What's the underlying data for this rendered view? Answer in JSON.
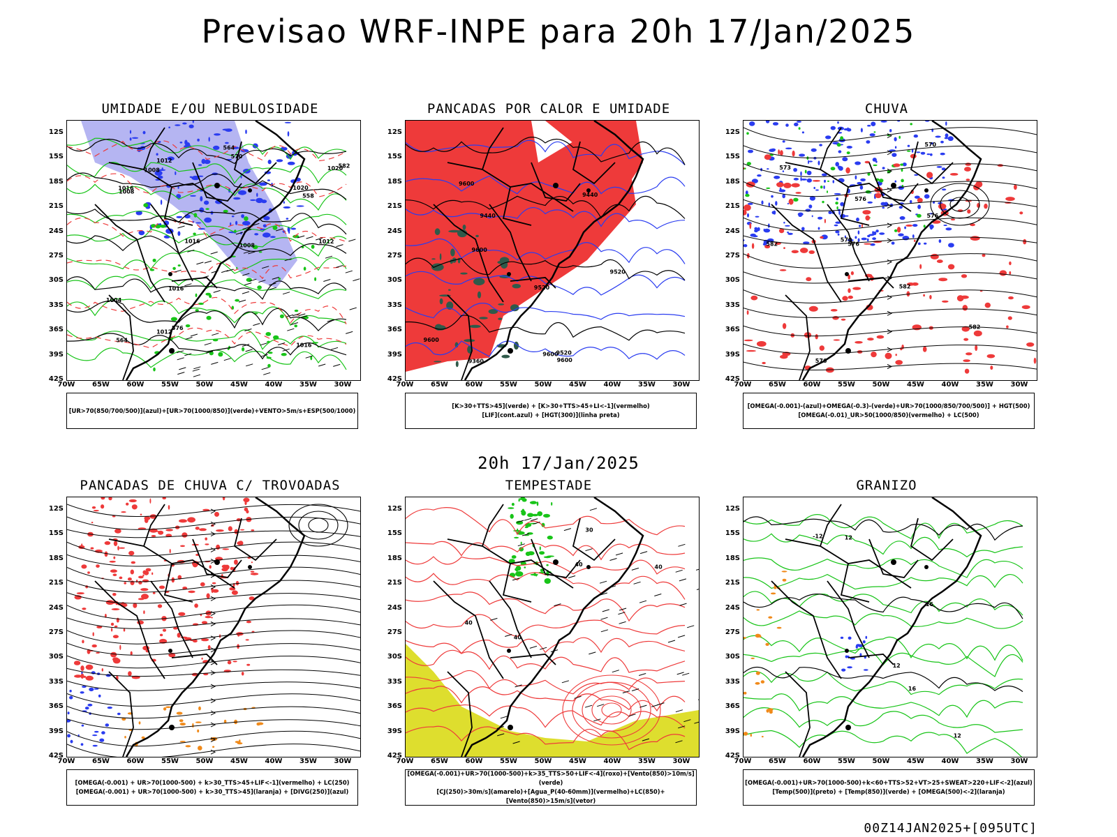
{
  "header": {
    "title": "Previsao WRF-INPE  para 20h 17/Jan/2025",
    "mid_time": "20h 17/Jan/2025",
    "footer": "00Z14JAN2025+[095UTC]"
  },
  "axes": {
    "lat_labels": [
      "12S",
      "15S",
      "18S",
      "21S",
      "24S",
      "27S",
      "30S",
      "33S",
      "36S",
      "39S",
      "42S"
    ],
    "lon_labels": [
      "70W",
      "65W",
      "60W",
      "55W",
      "50W",
      "45W",
      "40W",
      "35W",
      "30W"
    ]
  },
  "colors": {
    "red": "#ee3a3a",
    "blue": "#2a3cf0",
    "green": "#18c418",
    "lavender": "#a8a8f0",
    "dark_green": "#2f5a4a",
    "yellow": "#dede2e",
    "orange": "#f08a1a",
    "purple": "#9b1ab0"
  },
  "panels": [
    {
      "id": "umidade",
      "title": "UMIDADE E/OU NEBULOSIDADE",
      "legend": [
        "[UR>70(850/700/500)](azul)+[UR>70(1000/850)](verde)+VENTO>5m/s+ESP(500/1000)"
      ],
      "labels": [
        "1008",
        "1012",
        "1016",
        "1016",
        "1004",
        "1008",
        "1008",
        "1012",
        "1016",
        "1020",
        "1020",
        "1012",
        "1016",
        "582",
        "576",
        "570",
        "564",
        "558",
        "564"
      ]
    },
    {
      "id": "pancadas_calor",
      "title": "PANCADAS POR CALOR E UMIDADE",
      "legend": [
        "[K>30+TTS>45](verde) + [K>30+TTS>45+LI<-1](vermelho)",
        "[LIF](cont.azul) + [HGT(300)](linha preta)"
      ],
      "labels": [
        "9600",
        "9600",
        "9600",
        "9520",
        "9520",
        "9440",
        "9440",
        "9360",
        "9520",
        "9600",
        "9600"
      ]
    },
    {
      "id": "chuva",
      "title": "CHUVA",
      "legend": [
        "[OMEGA(-0.001)-(azul)+OMEGA(-0.3)-(verde)+UR>70(1000/850/700/500)] + HGT(500)",
        "[OMEGA(-0.01)_UR>50(1000/850)(vermelho) + LC(500)"
      ],
      "labels": [
        "582",
        "582",
        "576",
        "576",
        "576",
        "570",
        "570",
        "573",
        "582",
        "576"
      ]
    },
    {
      "id": "pancadas_trovoadas",
      "title": "PANCADAS DE CHUVA C/ TROVOADAS",
      "legend": [
        "[OMEGA(-0.001) + UR>70(1000-500) + k>30_TTS>45+LIF<-1](vermelho) + LC(250)",
        "[OMEGA(-0.001) + UR>70(1000-500) + k>30_TTS>45](laranja) + [DIVG(250)](azul)"
      ],
      "labels": []
    },
    {
      "id": "tempestade",
      "title": "TEMPESTADE",
      "legend": [
        "[OMEGA(-0.001)+UR>70(1000-500)+k>35_TTS>50+LIF<-4](roxo)+[Vento(850)>10m/s](verde)",
        "[CJ(250)>30m/s](amarelo)+[Agua_P(40-60mm)](vermelho)+LC(850)+[Vento(850)>15m/s](vetor)"
      ],
      "labels": [
        "40",
        "40",
        "40",
        "30",
        "40"
      ]
    },
    {
      "id": "granizo",
      "title": "GRANIZO",
      "legend": [
        "[OMEGA(-0.001)+UR>70(1000-500)+k<60+TTS>52+VT>25+SWEAT>220+LIF<-2](azul)",
        "[Temp(500)](preto) + [Temp(850)](verde) + [OMEGA(500)<-2](laranja)"
      ],
      "labels": [
        "16",
        "12",
        "12",
        "12",
        "-12",
        "16"
      ]
    }
  ]
}
